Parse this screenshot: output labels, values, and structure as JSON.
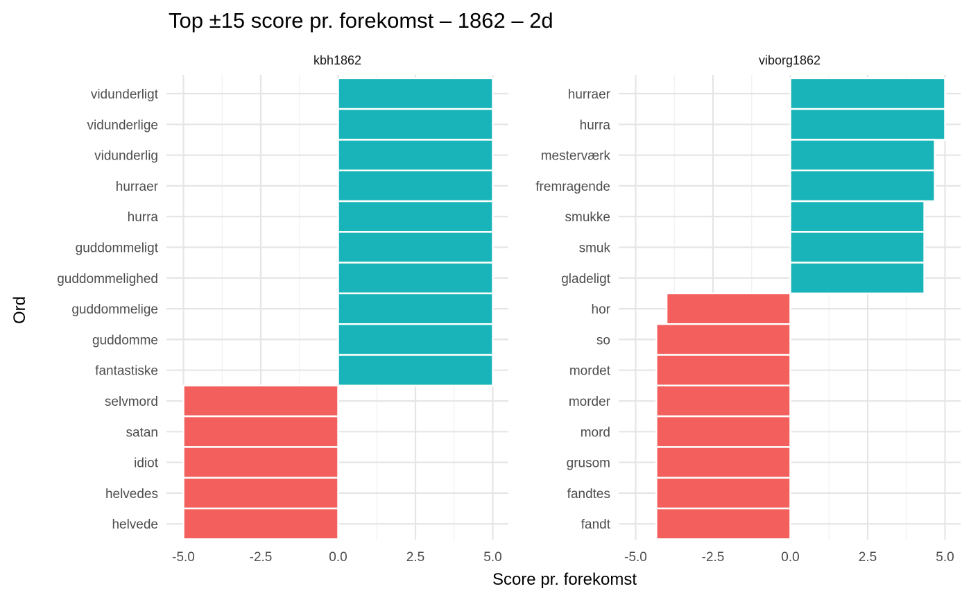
{
  "chart_data": {
    "type": "bar",
    "orientation": "horizontal",
    "title": "Top ±15 score pr. forekomst – 1862 – 2d",
    "xlabel": "Score pr. forekomst",
    "ylabel": "Ord",
    "xlim": [
      -5.0,
      5.0
    ],
    "xticks": [
      "-5.0",
      "-2.5",
      "0.0",
      "2.5",
      "5.0"
    ],
    "grid": true,
    "legend": "none",
    "colors": {
      "positive": "#19B4B9",
      "negative": "#F25F5C"
    },
    "facets": [
      {
        "name": "kbh1862",
        "categories": [
          "vidunderligt",
          "vidunderlige",
          "vidunderlig",
          "hurraer",
          "hurra",
          "guddommeligt",
          "guddommelighed",
          "guddommelige",
          "guddomme",
          "fantastiske",
          "selvmord",
          "satan",
          "idiot",
          "helvedes",
          "helvede"
        ],
        "values": [
          5,
          5,
          5,
          5,
          5,
          5,
          5,
          5,
          5,
          5,
          -5,
          -5,
          -5,
          -5,
          -5
        ]
      },
      {
        "name": "viborg1862",
        "categories": [
          "hurraer",
          "hurra",
          "mesterværk",
          "fremragende",
          "smukke",
          "smuk",
          "gladeligt",
          "hor",
          "so",
          "mordet",
          "morder",
          "mord",
          "grusom",
          "fandtes",
          "fandt"
        ],
        "values": [
          5,
          5,
          4.67,
          4.67,
          4.33,
          4.33,
          4.33,
          -4,
          -4.33,
          -4.33,
          -4.33,
          -4.33,
          -4.33,
          -4.33,
          -4.33
        ]
      }
    ]
  }
}
